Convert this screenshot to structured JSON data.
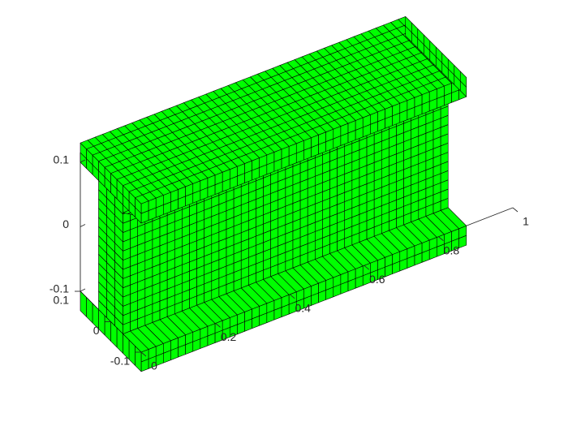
{
  "chart_data": {
    "type": "mesh3d",
    "title": "",
    "xlabel": "",
    "ylabel": "",
    "zlabel": "",
    "xlim": [
      0,
      1
    ],
    "ylim": [
      -0.1,
      0.1
    ],
    "zlim": [
      -0.13,
      0.13
    ],
    "x_ticks": [
      {
        "value": 0,
        "label": "0"
      },
      {
        "value": 0.2,
        "label": "0.2"
      },
      {
        "value": 0.4,
        "label": "0.4"
      },
      {
        "value": 0.6,
        "label": "0.6"
      },
      {
        "value": 0.8,
        "label": "0.8"
      },
      {
        "value": 1,
        "label": "1"
      }
    ],
    "y_ticks": [
      {
        "value": -0.1,
        "label": "-0.1"
      },
      {
        "value": 0,
        "label": "0"
      },
      {
        "value": 0.1,
        "label": "0.1"
      }
    ],
    "z_ticks": [
      {
        "value": -0.1,
        "label": "-0.1"
      },
      {
        "value": 0,
        "label": "0"
      },
      {
        "value": 0.1,
        "label": "0.1"
      }
    ],
    "grid": false,
    "face_color": "#00ff00",
    "edge_color": "#000000",
    "beam": {
      "length": 0.875,
      "flange_half_width": 0.1,
      "flange_top": 0.13,
      "flange_bottom": 0.1,
      "web_half_thickness": 0.04,
      "bottom_flange_top": -0.1,
      "bottom_flange_bottom": -0.13,
      "mesh_divisions_length": 44,
      "mesh_divisions_width": 10,
      "mesh_divisions_height": 14
    }
  }
}
